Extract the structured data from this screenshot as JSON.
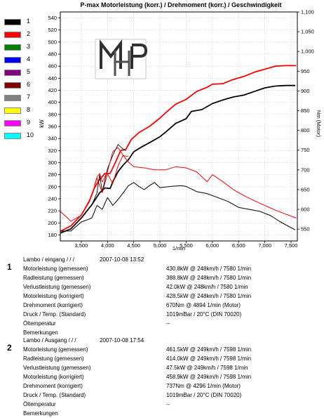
{
  "chart_data": {
    "type": "line",
    "title": "P-max Motorleistung (korr.) / Drehmoment (korr.) / Geschwindigkeit",
    "xlabel": "1/min",
    "ylabel_left": "kW",
    "ylabel_right": "Nm (Motor)",
    "xlim": [
      3100,
      7620
    ],
    "ylim_left": [
      170,
      550
    ],
    "ylim_right": [
      520,
      1100
    ],
    "x_ticks": [
      3500,
      4000,
      4500,
      5000,
      5500,
      6000,
      6500,
      7000,
      7500
    ],
    "x_tick_labels": [
      "3,500",
      "4,000",
      "4,500",
      "5,000",
      "5,500",
      "6,000",
      "6,500",
      "7,000",
      "7,500"
    ],
    "y_left_ticks": [
      180,
      200,
      220,
      240,
      260,
      280,
      300,
      320,
      340,
      360,
      380,
      400,
      420,
      440,
      460,
      480,
      500,
      520,
      540
    ],
    "y_right_ticks": [
      550,
      600,
      650,
      700,
      750,
      800,
      850,
      900,
      950,
      "1,000",
      "1,050",
      "1,100"
    ],
    "grid": true,
    "legend": {
      "placement": "left",
      "items": [
        {
          "num": "1",
          "color": "#000000"
        },
        {
          "num": "2",
          "color": "#ff0000"
        },
        {
          "num": "3",
          "color": "#008000"
        },
        {
          "num": "4",
          "color": "#0000ff"
        },
        {
          "num": "5",
          "color": "#800080"
        },
        {
          "num": "6",
          "color": "#800000"
        },
        {
          "num": "7",
          "color": "#808080"
        },
        {
          "num": "8",
          "color": "#ffff00"
        },
        {
          "num": "9",
          "color": "#ff00ff"
        },
        {
          "num": "10",
          "color": "#00ffff"
        }
      ]
    },
    "logo_text": "MHP",
    "series": [
      {
        "run": "1",
        "kind": "power",
        "axis": "left",
        "color": "#000000",
        "width": 1.8,
        "x": [
          3100,
          3300,
          3500,
          3700,
          3850,
          3950,
          4050,
          4100,
          4200,
          4300,
          4400,
          4500,
          4650,
          4800,
          5000,
          5100,
          5300,
          5500,
          5600,
          5800,
          6000,
          6200,
          6400,
          6600,
          6800,
          7000,
          7200,
          7400,
          7580
        ],
        "y": [
          183,
          190,
          208,
          230,
          250,
          258,
          257,
          268,
          285,
          296,
          305,
          318,
          326,
          333,
          343,
          350,
          365,
          373,
          385,
          388,
          398,
          404,
          409,
          412,
          418,
          424,
          427,
          428,
          428
        ]
      },
      {
        "run": "2",
        "kind": "power",
        "axis": "left",
        "color": "#ff0000",
        "width": 1.8,
        "x": [
          3100,
          3300,
          3500,
          3650,
          3750,
          3850,
          3950,
          4050,
          4150,
          4250,
          4350,
          4450,
          4600,
          4800,
          5000,
          5100,
          5300,
          5500,
          5700,
          5900,
          6000,
          6200,
          6400,
          6600,
          6800,
          7000,
          7200,
          7400,
          7598
        ],
        "y": [
          186,
          195,
          213,
          235,
          258,
          272,
          282,
          282,
          300,
          320,
          322,
          338,
          350,
          360,
          374,
          382,
          397,
          405,
          418,
          425,
          430,
          431,
          438,
          443,
          450,
          455,
          460,
          461,
          461
        ]
      },
      {
        "run": "1",
        "kind": "torque",
        "axis": "right",
        "color": "#000000",
        "width": 1.0,
        "x": [
          3100,
          3300,
          3500,
          3700,
          3800,
          3900,
          4000,
          4100,
          4200,
          4300,
          4400,
          4500,
          4600,
          4700,
          4800,
          4894,
          5000,
          5200,
          5400,
          5500,
          5700,
          5900,
          6100,
          6300,
          6500,
          6700,
          6900,
          7100,
          7300,
          7580
        ],
        "y": [
          545,
          545,
          568,
          578,
          610,
          600,
          630,
          610,
          625,
          642,
          660,
          668,
          658,
          650,
          660,
          668,
          655,
          658,
          660,
          658,
          645,
          640,
          630,
          620,
          605,
          600,
          595,
          585,
          568,
          548
        ]
      },
      {
        "run": "2",
        "kind": "torque",
        "axis": "right",
        "color": "#ff0000",
        "width": 1.0,
        "x": [
          3100,
          3300,
          3500,
          3700,
          3800,
          3900,
          4000,
          4100,
          4200,
          4296,
          4400,
          4500,
          4700,
          4900,
          5100,
          5300,
          5500,
          5700,
          5900,
          6000,
          6200,
          6400,
          6600,
          6800,
          7000,
          7200,
          7400,
          7598
        ],
        "y": [
          595,
          570,
          585,
          635,
          680,
          642,
          690,
          665,
          710,
          737,
          720,
          708,
          705,
          700,
          700,
          708,
          705,
          695,
          670,
          688,
          670,
          650,
          635,
          622,
          610,
          598,
          588,
          578
        ]
      },
      {
        "run": "1",
        "kind": "aux",
        "axis": "left",
        "color": "#000000",
        "width": 0.9,
        "x": [
          3700,
          3800,
          3850,
          3900,
          4000,
          4100,
          4200,
          4300,
          4350
        ],
        "y": [
          230,
          250,
          280,
          252,
          290,
          312,
          330,
          322,
          320
        ]
      },
      {
        "run": "2",
        "kind": "aux",
        "axis": "left",
        "color": "#ff0000",
        "width": 0.9,
        "x": [
          3750,
          3800,
          3850,
          3900,
          4000,
          4100,
          4200,
          4300,
          4400
        ],
        "y": [
          262,
          276,
          282,
          268,
          285,
          318,
          325,
          312,
          310
        ]
      }
    ]
  },
  "runs": [
    {
      "number": "1",
      "title": "Lambo / eingang /  /  /",
      "date": "2007-10-08 13:52",
      "rows": [
        {
          "label": "Motorleistung (gemessen)",
          "value": "430.8kW @ 248km/h / 7580 1/min"
        },
        {
          "label": "Radleistung (gemessen)",
          "value": "388.8kW @ 248km/h / 7580 1/min"
        },
        {
          "label": "Verlustleistung (gemessen)",
          "value": "42.0kW @ 248km/h / 7580 1/min"
        },
        {
          "label": "Motorleistung (korrigiert)",
          "value": "428.5kW @ 248km/h / 7580 1/min"
        },
        {
          "label": "Drehmoment (korrigiert)",
          "value": "670Nm @ 4894 1/min (Motor)"
        },
        {
          "label": "Druck / Temp. (Standard)",
          "value": "1019mBar / 20°C  (DIN 70020)"
        },
        {
          "label": "Öltemperatur",
          "value": "--"
        },
        {
          "label": "Bemerkungen",
          "value": ""
        }
      ]
    },
    {
      "number": "2",
      "title": "Lambo / Ausgang /  /  /",
      "date": "2007-10-08 17:54",
      "rows": [
        {
          "label": "Motorleistung (gemessen)",
          "value": "461.5kW @ 249km/h / 7598 1/min"
        },
        {
          "label": "Radleistung (gemessen)",
          "value": "414.0kW @ 249km/h / 7598 1/min"
        },
        {
          "label": "Verlustleistung (gemessen)",
          "value": "47.5kW @ 249km/h / 7598 1/min"
        },
        {
          "label": "Motorleistung (korrigiert)",
          "value": "458.9kW @ 249km/h / 7598 1/min"
        },
        {
          "label": "Drehmoment (korrigiert)",
          "value": "737Nm @ 4296 1/min (Motor)"
        },
        {
          "label": "Druck / Temp. (Standard)",
          "value": "1019mBar / 20°C  (DIN 70020)"
        },
        {
          "label": "Öltemperatur",
          "value": "--"
        },
        {
          "label": "Bemerkungen",
          "value": ""
        }
      ]
    }
  ]
}
